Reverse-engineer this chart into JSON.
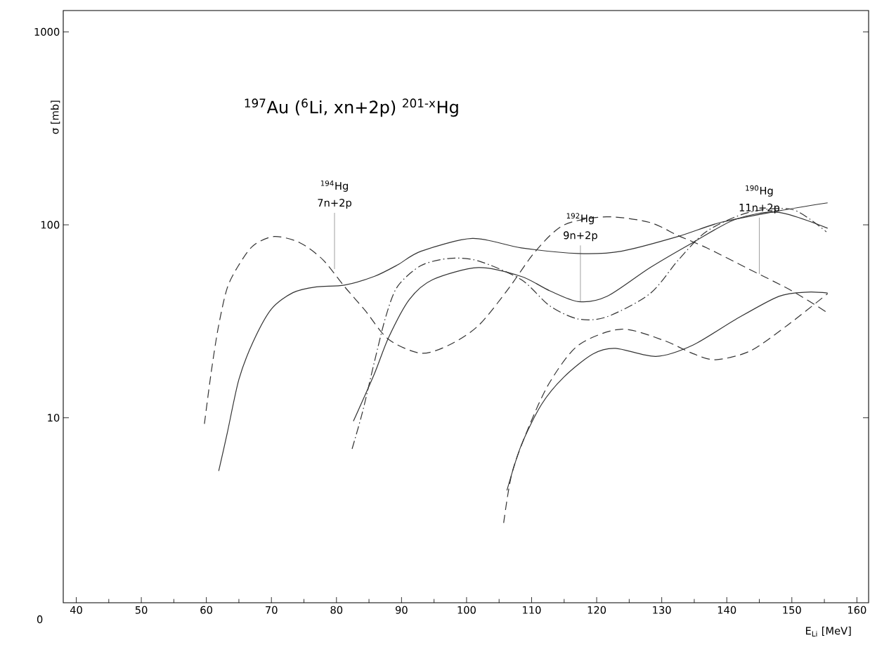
{
  "chart_data": {
    "type": "line",
    "title": "$^{197}$Au ($^{6}$Li, xn+2p)  $^{201-x}$Hg",
    "xlabel": "E$_{Li}$ [MeV]",
    "ylabel": "σ [mb]",
    "log": "y",
    "xlim": [
      38,
      161.8
    ],
    "ylim": [
      1.1,
      1290
    ],
    "xticks": [
      40,
      50,
      60,
      70,
      80,
      90,
      100,
      110,
      120,
      130,
      140,
      150,
      160
    ],
    "yticks": [
      10,
      100,
      1000
    ],
    "annotations": [
      "$^{194}$Hg",
      {
        "text": "7n+2p",
        "x": 79.7,
        "y": 59
      },
      "$^{192}$Hg",
      {
        "text": "9n+2p",
        "x": 117.5,
        "y": 40
      },
      "$^{190}$Hg",
      {
        "text": "11n+2p",
        "x": 145,
        "y": 55.7
      },
      "0"
    ],
    "series": [
      {
        "color": "#333333",
        "line_style": "dashed",
        "x": [
          59.7,
          60.7,
          61.8,
          63.2,
          65.0,
          67.2,
          70.4,
          74.3,
          77.9,
          81.2,
          84.4,
          88.0,
          93.0,
          97.4,
          101.8,
          106.2,
          110.6,
          115.0,
          121.5,
          128.1,
          132.5,
          136.9,
          143.4,
          150.0,
          155.5
        ],
        "values": [
          9.3,
          16.8,
          29,
          47,
          62,
          78,
          87,
          81,
          66,
          48,
          36,
          25.5,
          21.6,
          23.9,
          30,
          45.5,
          73,
          100,
          110,
          103,
          88,
          76,
          59,
          45.5,
          35
        ]
      },
      {
        "color": "#333333",
        "line_style": "solid",
        "x": [
          61.9,
          63.2,
          65.0,
          67.2,
          70.0,
          73.3,
          76.9,
          81.2,
          85.8,
          89.4,
          93.0,
          100.9,
          108.4,
          117.2,
          123.8,
          132.5,
          139.1,
          147.9,
          155.5
        ],
        "values": [
          5.3,
          8.3,
          15.8,
          24.8,
          36.6,
          44.5,
          47.7,
          48.7,
          54,
          62,
          73,
          85,
          76,
          71,
          73,
          87,
          103,
          118,
          130
        ]
      },
      {
        "color": "#333333",
        "line_style": "dashdot",
        "x": [
          82.4,
          84.0,
          85.8,
          87.6,
          89.4,
          93.0,
          97.4,
          101.8,
          108.4,
          112.8,
          117.2,
          121.6,
          128.2,
          132.6,
          137.0,
          143.4,
          150.1,
          155.3
        ],
        "values": [
          6.9,
          10.7,
          19.3,
          33.6,
          48,
          61.5,
          67,
          65,
          52,
          38,
          32.5,
          33.4,
          44,
          66,
          93,
          116,
          120,
          92
        ]
      },
      {
        "color": "#333333",
        "line_style": "solid",
        "x": [
          82.6,
          85.8,
          88.0,
          91.2,
          94.8,
          101.8,
          108.4,
          112.8,
          117.2,
          121.6,
          128.2,
          134.8,
          141.4,
          148.0,
          155.5
        ],
        "values": [
          9.6,
          16.8,
          26,
          41,
          52,
          60,
          54,
          45.5,
          40,
          42.6,
          60,
          81,
          107,
          116,
          96
        ]
      },
      {
        "color": "#333333",
        "line_style": "solid",
        "x": [
          106.2,
          108.4,
          111.5,
          115.0,
          119.4,
          122.9,
          129.1,
          134.8,
          141.4,
          148.0,
          152.4,
          155.5
        ],
        "values": [
          4.2,
          7.2,
          11.7,
          16.3,
          21.4,
          22.9,
          20.8,
          23.8,
          32.4,
          42.6,
          44.8,
          44.3
        ]
      },
      {
        "color": "#333333",
        "line_style": "dashed",
        "x": [
          105.7,
          107.0,
          109.7,
          112.8,
          117.2,
          123.8,
          130.4,
          134.8,
          138.3,
          143.6,
          149.4,
          155.5
        ],
        "values": [
          2.85,
          5.2,
          9.2,
          15.3,
          23.8,
          28.8,
          25.1,
          21.5,
          20,
          22.2,
          30.3,
          44
        ]
      }
    ]
  }
}
